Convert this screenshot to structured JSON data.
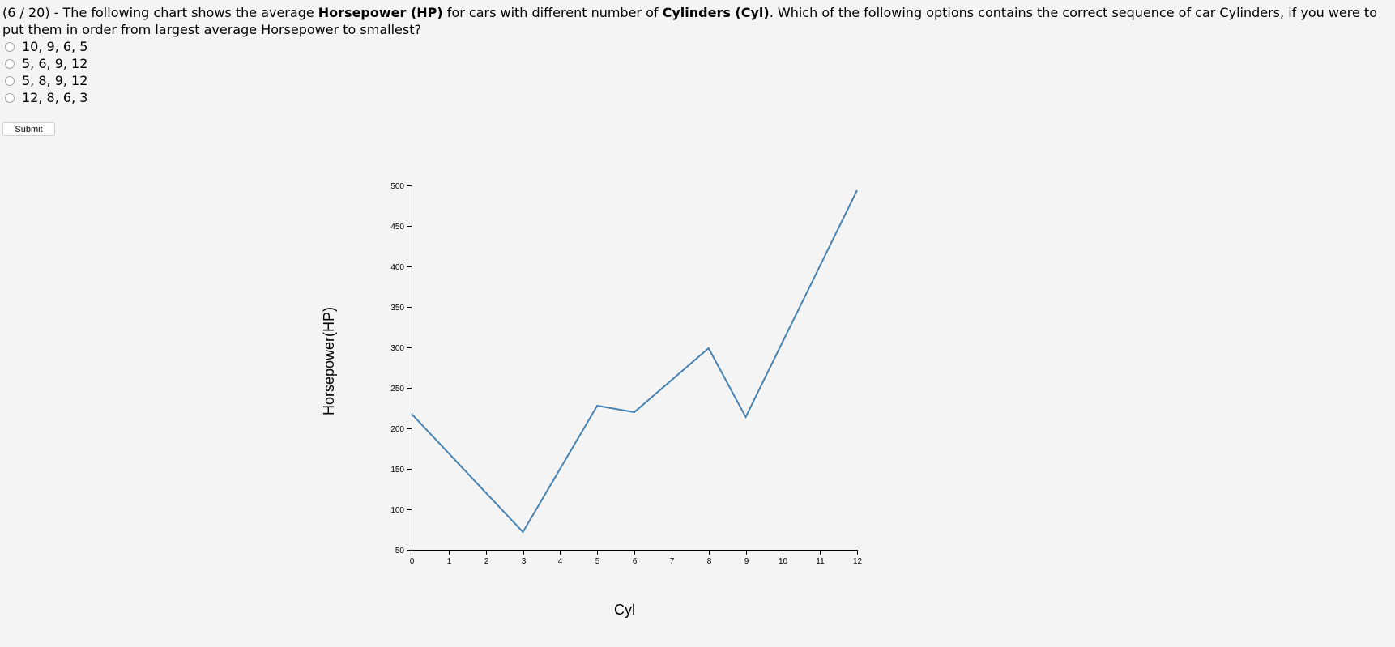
{
  "question": {
    "prefix": "(6 / 20) - The following chart shows the average ",
    "bold1": "Horsepower (HP)",
    "middle": " for cars with different number of ",
    "bold2": "Cylinders (Cyl)",
    "suffix": ". Which of the following options contains the correct sequence of car Cylinders, if you were to put them in order from largest average Horsepower to smallest?"
  },
  "options": [
    {
      "label": "10, 9, 6, 5"
    },
    {
      "label": "5, 6, 9, 12"
    },
    {
      "label": "5, 8, 9, 12"
    },
    {
      "label": "12, 8, 6, 3"
    }
  ],
  "submit_label": "Submit",
  "chart_data": {
    "type": "line",
    "xlabel": "Cyl",
    "ylabel": "Horsepower(HP)",
    "xlim": [
      0,
      12
    ],
    "ylim": [
      50,
      500
    ],
    "xticks": [
      0,
      1,
      2,
      3,
      4,
      5,
      6,
      7,
      8,
      9,
      10,
      11,
      12
    ],
    "yticks": [
      50,
      100,
      150,
      200,
      250,
      300,
      350,
      400,
      450,
      500
    ],
    "grid": false,
    "line_color": "#4682b4",
    "x": [
      0,
      3,
      5,
      6,
      8,
      9,
      12
    ],
    "y": [
      218,
      72,
      228,
      220,
      299,
      214,
      494
    ]
  }
}
